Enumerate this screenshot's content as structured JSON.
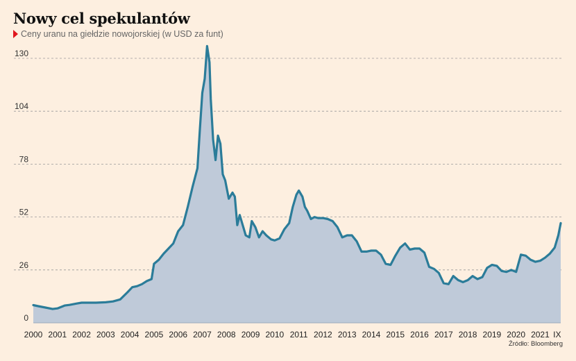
{
  "title": "Nowy cel spekulantów",
  "subtitle": "Ceny uranu na giełdzie nowojorskiej (w USD za funt)",
  "source": "Źródło: Bloomberg",
  "colors": {
    "background": "#fdefe0",
    "line": "#2b7c99",
    "fill": "#bfcad9",
    "marker": "#e0161d",
    "grid": "#999999"
  },
  "chart_data": {
    "type": "area",
    "title": "Nowy cel spekulantów",
    "subtitle": "Ceny uranu na giełdzie nowojorskiej (w USD za funt)",
    "ylim": [
      0,
      130
    ],
    "yticks": [
      0,
      26,
      52,
      78,
      104,
      130
    ],
    "xlim": [
      2000,
      2021.85
    ],
    "xticks": [
      {
        "value": 2000,
        "label": "2000"
      },
      {
        "value": 2001,
        "label": "2001"
      },
      {
        "value": 2002,
        "label": "2002"
      },
      {
        "value": 2003,
        "label": "2003"
      },
      {
        "value": 2004,
        "label": "2004"
      },
      {
        "value": 2005,
        "label": "2005"
      },
      {
        "value": 2006,
        "label": "2006"
      },
      {
        "value": 2007,
        "label": "2007"
      },
      {
        "value": 2008,
        "label": "2008"
      },
      {
        "value": 2009,
        "label": "2009"
      },
      {
        "value": 2010,
        "label": "2010"
      },
      {
        "value": 2011,
        "label": "2011"
      },
      {
        "value": 2012,
        "label": "2012"
      },
      {
        "value": 2013,
        "label": "2013"
      },
      {
        "value": 2014,
        "label": "2014"
      },
      {
        "value": 2015,
        "label": "2015"
      },
      {
        "value": 2016,
        "label": "2016"
      },
      {
        "value": 2017,
        "label": "2017"
      },
      {
        "value": 2018,
        "label": "2018"
      },
      {
        "value": 2019,
        "label": "2019"
      },
      {
        "value": 2020,
        "label": "2020"
      },
      {
        "value": 2021,
        "label": "2021"
      },
      {
        "value": 2021.7,
        "label": "IX"
      }
    ],
    "grid": "horizontal dashed",
    "series": [
      {
        "x": [
          2000.0,
          2000.2,
          2000.5,
          2000.8,
          2001.0,
          2001.3,
          2001.5,
          2001.8,
          2002.0,
          2002.3,
          2002.6,
          2003.0,
          2003.3,
          2003.6,
          2003.9,
          2004.1,
          2004.3,
          2004.5,
          2004.7,
          2004.9,
          2005.0,
          2005.2,
          2005.4,
          2005.6,
          2005.8,
          2005.9,
          2006.0,
          2006.2,
          2006.4,
          2006.6,
          2006.8,
          2006.9,
          2007.0,
          2007.1,
          2007.2,
          2007.3,
          2007.35,
          2007.45,
          2007.55,
          2007.65,
          2007.75,
          2007.85,
          2007.95,
          2008.1,
          2008.25,
          2008.35,
          2008.45,
          2008.55,
          2008.65,
          2008.8,
          2008.95,
          2009.05,
          2009.2,
          2009.35,
          2009.5,
          2009.65,
          2009.85,
          2010.0,
          2010.2,
          2010.4,
          2010.6,
          2010.75,
          2010.9,
          2011.0,
          2011.15,
          2011.25,
          2011.35,
          2011.5,
          2011.65,
          2011.8,
          2012.0,
          2012.2,
          2012.4,
          2012.6,
          2012.8,
          2013.0,
          2013.2,
          2013.4,
          2013.6,
          2013.8,
          2014.0,
          2014.2,
          2014.4,
          2014.6,
          2014.8,
          2015.0,
          2015.2,
          2015.4,
          2015.6,
          2015.8,
          2016.0,
          2016.2,
          2016.4,
          2016.6,
          2016.8,
          2017.0,
          2017.2,
          2017.4,
          2017.6,
          2017.8,
          2018.0,
          2018.2,
          2018.4,
          2018.6,
          2018.8,
          2019.0,
          2019.2,
          2019.4,
          2019.6,
          2019.8,
          2020.0,
          2020.2,
          2020.4,
          2020.6,
          2020.8,
          2021.0,
          2021.2,
          2021.4,
          2021.6,
          2021.75,
          2021.85
        ],
        "values": [
          8.7,
          8.2,
          7.5,
          6.8,
          7.1,
          8.5,
          8.8,
          9.5,
          9.9,
          9.9,
          9.9,
          10.1,
          10.5,
          11.5,
          15.0,
          17.5,
          18.0,
          19.0,
          20.5,
          21.5,
          29.0,
          31.0,
          34.0,
          36.5,
          39.0,
          42.0,
          45.0,
          48.0,
          57.0,
          67.0,
          76.0,
          95.0,
          113.0,
          120.0,
          136.0,
          128.0,
          110.0,
          90.0,
          80.0,
          92.0,
          88.0,
          73.0,
          70.0,
          61.0,
          64.0,
          62.0,
          48.0,
          53.0,
          49.0,
          43.0,
          42.0,
          50.0,
          47.0,
          42.0,
          45.0,
          43.0,
          41.0,
          40.5,
          41.5,
          46.0,
          49.0,
          57.0,
          63.0,
          65.0,
          62.0,
          57.0,
          55.0,
          51.0,
          52.0,
          51.5,
          51.5,
          51.0,
          50.0,
          47.0,
          42.0,
          43.0,
          43.0,
          40.0,
          35.0,
          35.0,
          35.5,
          35.5,
          33.5,
          29.0,
          28.5,
          33.0,
          37.0,
          39.0,
          36.0,
          36.5,
          36.5,
          34.5,
          27.5,
          26.5,
          24.5,
          19.5,
          19.0,
          23.0,
          21.0,
          20.0,
          21.0,
          23.0,
          21.5,
          22.5,
          27.0,
          28.5,
          28.0,
          25.5,
          25.0,
          26.0,
          25.0,
          33.5,
          33.0,
          31.0,
          30.0,
          30.5,
          32.0,
          34.0,
          37.0,
          43.0,
          49.0
        ]
      }
    ]
  }
}
